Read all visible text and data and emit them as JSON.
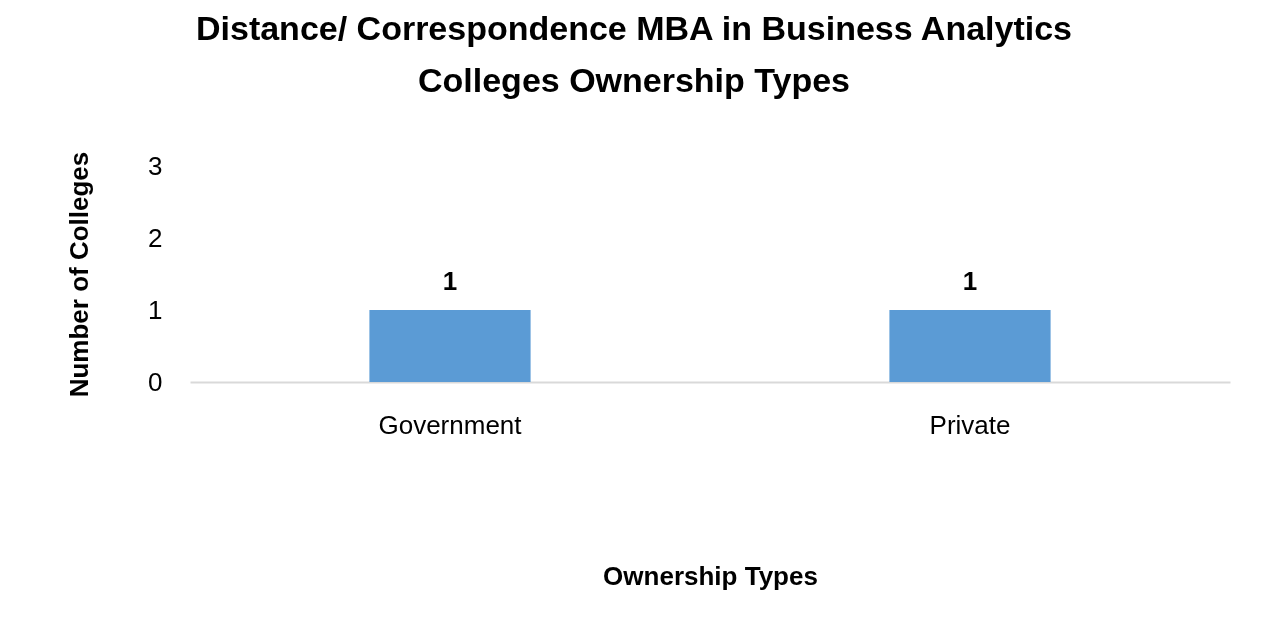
{
  "chart_data": {
    "type": "bar",
    "title": "Distance/ Correspondence MBA in Business Analytics\nColleges Ownership Types",
    "xlabel": "Ownership Types",
    "ylabel": "Number of Colleges",
    "categories": [
      "Government",
      "Private"
    ],
    "values": [
      1,
      1
    ],
    "color": "#5b9bd5",
    "ylim": [
      0,
      3
    ],
    "yticks": [
      0,
      1,
      2,
      3
    ],
    "grid": false,
    "data_labels": true
  }
}
